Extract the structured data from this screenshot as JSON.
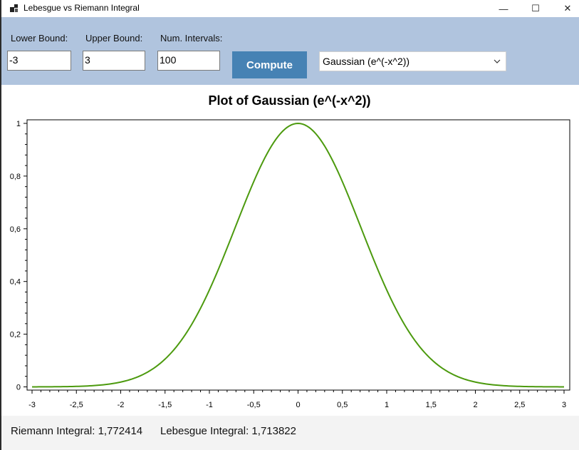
{
  "window": {
    "title": "Lebesgue vs Riemann Integral",
    "minimize_glyph": "—",
    "maximize_glyph": "☐",
    "close_glyph": "✕"
  },
  "toolbar": {
    "lower_label": "Lower Bound:",
    "lower_value": "-3",
    "upper_label": "Upper Bound:",
    "upper_value": "3",
    "intervals_label": "Num. Intervals:",
    "intervals_value": "100",
    "compute_label": "Compute",
    "function_selected": "Gaussian (e^(-x^2))",
    "accent_color": "#4682b4",
    "band_color": "#b0c4de"
  },
  "chart_data": {
    "type": "line",
    "title": "Plot of Gaussian (e^(-x^2))",
    "function": "exp(-x^2)",
    "xlim": [
      -3,
      3
    ],
    "ylim": [
      0,
      1
    ],
    "x_ticks": [
      "-3",
      "-2,5",
      "-2",
      "-1,5",
      "-1",
      "-0,5",
      "0",
      "0,5",
      "1",
      "1,5",
      "2",
      "2,5",
      "3"
    ],
    "y_ticks": [
      "0",
      "0,2",
      "0,4",
      "0,6",
      "0,8",
      "1"
    ],
    "series": [
      {
        "color": "#4c9a0e",
        "x": [
          -3,
          -2.5,
          -2,
          -1.75,
          -1.5,
          -1.25,
          -1,
          -0.75,
          -0.5,
          -0.25,
          0,
          0.25,
          0.5,
          0.75,
          1,
          1.25,
          1.5,
          1.75,
          2,
          2.5,
          3
        ],
        "y": [
          0.0001,
          0.0019,
          0.0183,
          0.0468,
          0.1054,
          0.2096,
          0.3679,
          0.5698,
          0.7788,
          0.9394,
          1.0,
          0.9394,
          0.7788,
          0.5698,
          0.3679,
          0.2096,
          0.1054,
          0.0468,
          0.0183,
          0.0019,
          0.0001
        ]
      }
    ]
  },
  "status": {
    "riemann": "Riemann Integral: 1,772414",
    "lebesgue": "Lebesgue Integral: 1,713822"
  }
}
